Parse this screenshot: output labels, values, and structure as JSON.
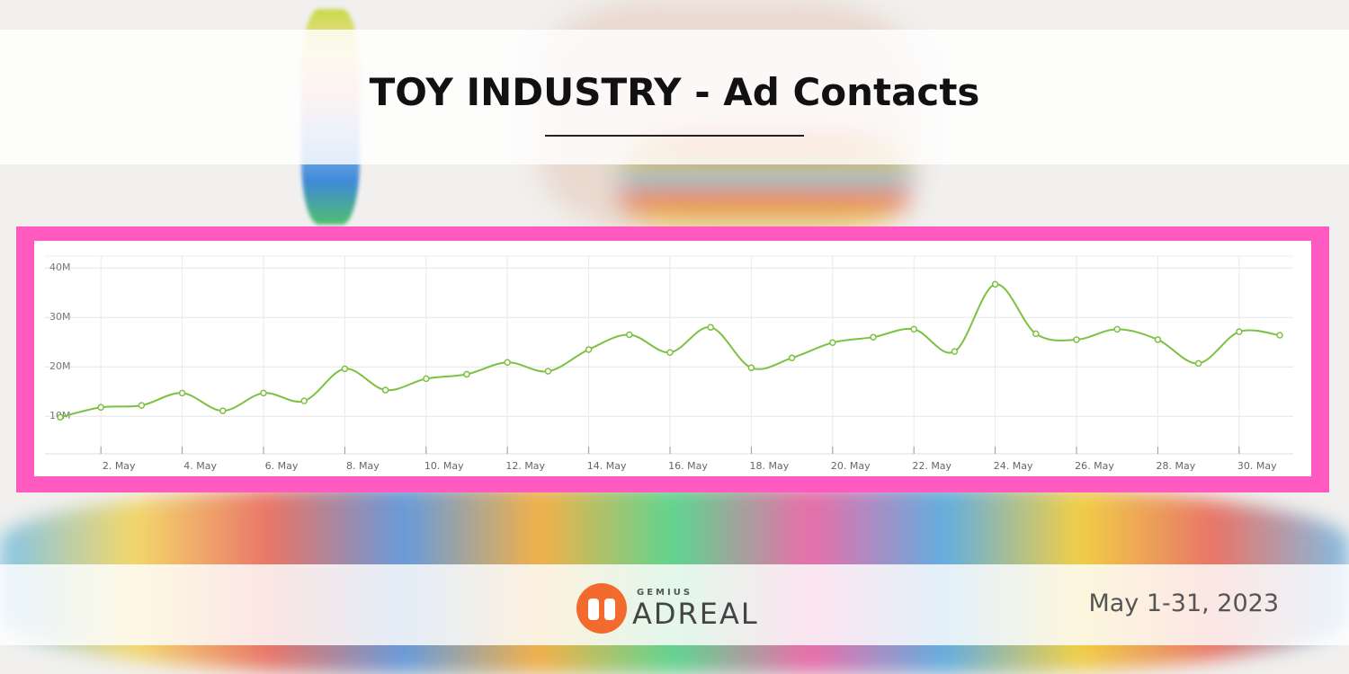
{
  "chart_data": {
    "type": "line",
    "title": "TOY INDUSTRY - Ad Contacts",
    "categories": [
      null,
      "2. May",
      null,
      "4. May",
      null,
      "6. May",
      null,
      "8. May",
      null,
      "10. May",
      null,
      "12. May",
      null,
      "14. May",
      null,
      "16. May",
      null,
      "18. May",
      null,
      "20. May",
      null,
      "22. May",
      null,
      "24. May",
      null,
      "26. May",
      null,
      "28. May",
      null,
      "30. May",
      null
    ],
    "values": [
      9800000,
      11800000,
      12200000,
      14700000,
      11100000,
      14700000,
      13100000,
      19600000,
      15300000,
      17600000,
      18500000,
      20900000,
      19100000,
      23500000,
      26500000,
      22900000,
      28000000,
      19800000,
      21800000,
      24900000,
      26000000,
      27600000,
      23100000,
      36700000,
      26700000,
      25500000,
      27600000,
      25500000,
      20700000,
      27100000,
      26400000
    ],
    "color": "#7cc142",
    "ylim": [
      2400000,
      42400000
    ],
    "yticks": [
      {
        "value": 10000000,
        "label": "10M"
      },
      {
        "value": 20000000,
        "label": "20M"
      },
      {
        "value": 30000000,
        "label": "30M"
      },
      {
        "value": 40000000,
        "label": "40M"
      }
    ],
    "grid": true
  },
  "footer": {
    "brand_top": "GEMIUS",
    "brand": "ADREAL",
    "date": "May 1-31, 2023"
  }
}
